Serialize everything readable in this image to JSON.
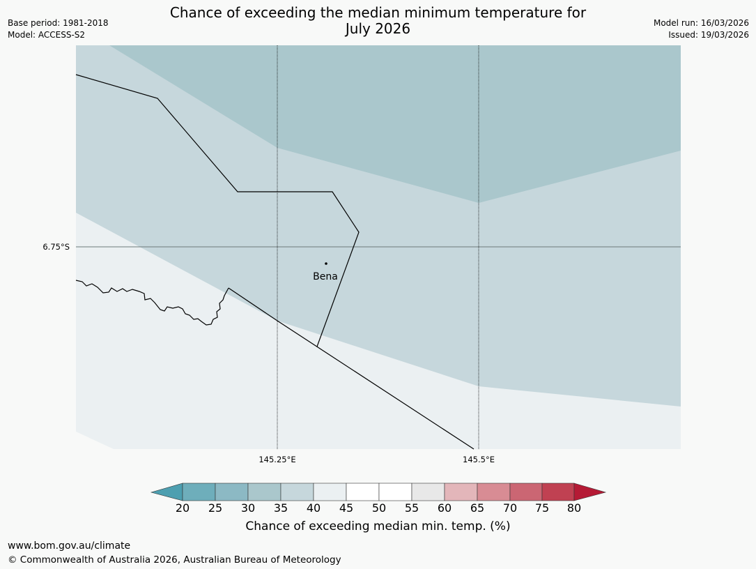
{
  "title_line1": "Chance of exceeding the median minimum temperature for",
  "title_line2": "July 2026",
  "meta_left": [
    "Base period: 1981-2018",
    "Model: ACCESS-S2"
  ],
  "meta_right": [
    "Model run: 16/03/2026",
    "Issued: 19/03/2026"
  ],
  "map": {
    "latitude_label": "6.75°S",
    "longitude_labels": [
      "145.25°E",
      "145.5°E"
    ],
    "place": "Bena"
  },
  "colorbar": {
    "ticks": [
      "20",
      "25",
      "30",
      "35",
      "40",
      "45",
      "50",
      "55",
      "60",
      "65",
      "70",
      "75",
      "80"
    ],
    "colors": [
      "#4d9fb0",
      "#6eaebb",
      "#8cb9c4",
      "#aac7cc",
      "#c6d7dc",
      "#ebf0f2",
      "#ffffff",
      "#ffffff",
      "#e8e8e8",
      "#e3b6ba",
      "#d88c94",
      "#cb6673",
      "#c04152",
      "#b51a35"
    ],
    "label": "Chance of exceeding median min. temp. (%)"
  },
  "footer": {
    "url": "www.bom.gov.au/climate",
    "copyright": "© Commonwealth of Australia 2026, Australian Bureau of Meteorology"
  }
}
